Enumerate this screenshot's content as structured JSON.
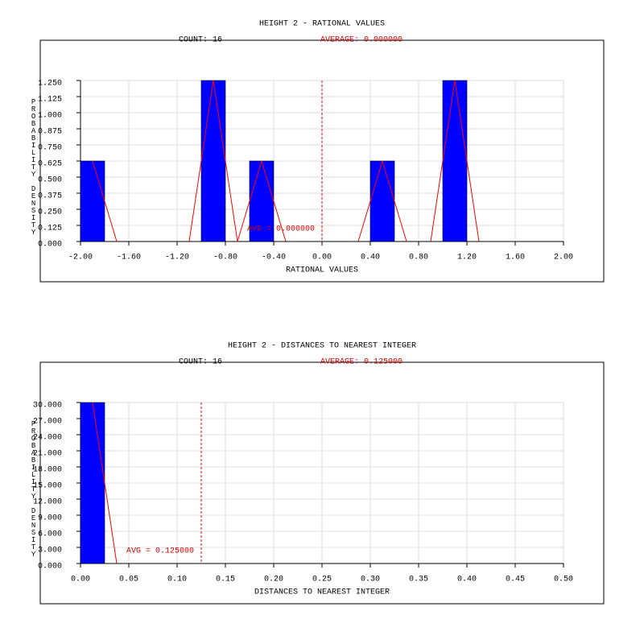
{
  "chart_data": [
    {
      "type": "histogram",
      "title": "HEIGHT 2 - RATIONAL VALUES",
      "count_label": "COUNT: 16",
      "average_label": "AVERAGE: 0.000000",
      "avg_annotation": "AVG = 0.000000",
      "mean": 0,
      "x_label": "RATIONAL VALUES",
      "y_label": "PROBABILITY DENSITY",
      "bins": [
        -2.0,
        -1.8,
        -1.6,
        -1.4,
        -1.2,
        -1.0,
        -0.8,
        -0.6,
        -0.4,
        -0.2,
        0.0,
        0.2,
        0.4,
        0.6,
        0.8,
        1.0,
        1.2
      ],
      "values": [
        0.625,
        0,
        0,
        0,
        0,
        1.25,
        0,
        0.625,
        0,
        0,
        0,
        0,
        0.625,
        0,
        0,
        1.25
      ],
      "color": "#0000ff",
      "polygon_color": "#ff0000",
      "xlim": [
        -2,
        2
      ],
      "ylim": [
        0,
        1.25
      ],
      "xticks": [
        {
          "value": -2,
          "label": "-2.00"
        },
        {
          "value": -1.6,
          "label": "-1.60"
        },
        {
          "value": -1.2,
          "label": "-1.20"
        },
        {
          "value": -0.8,
          "label": "-0.80"
        },
        {
          "value": -0.4,
          "label": "-0.40"
        },
        {
          "value": 0,
          "label": "0.00"
        },
        {
          "value": 0.4,
          "label": "0.40"
        },
        {
          "value": 0.8,
          "label": "0.80"
        },
        {
          "value": 1.2,
          "label": "1.20"
        },
        {
          "value": 1.6,
          "label": "1.60"
        },
        {
          "value": 2,
          "label": "2.00"
        }
      ],
      "yticks": [
        {
          "value": 0,
          "label": "0.000"
        },
        {
          "value": 0.125,
          "label": "0.125"
        },
        {
          "value": 0.25,
          "label": "0.250"
        },
        {
          "value": 0.375,
          "label": "0.375"
        },
        {
          "value": 0.5,
          "label": "0.500"
        },
        {
          "value": 0.625,
          "label": "0.625"
        },
        {
          "value": 0.75,
          "label": "0.750"
        },
        {
          "value": 0.875,
          "label": "0.875"
        },
        {
          "value": 1,
          "label": "1.000"
        },
        {
          "value": 1.125,
          "label": "1.125"
        },
        {
          "value": 1.25,
          "label": "1.250"
        }
      ],
      "grid": true
    },
    {
      "type": "histogram",
      "title": "HEIGHT 2 - DISTANCES TO NEAREST INTEGER",
      "count_label": "COUNT: 16",
      "average_label": "AVERAGE: 0.125000",
      "avg_annotation": "AVG = 0.125000",
      "mean": 0.125,
      "x_label": "DISTANCES TO NEAREST INTEGER",
      "y_label": "PROBABILITY DENSITY",
      "bins": [
        0,
        0.025
      ],
      "values": [
        30
      ],
      "color": "#0000ff",
      "polygon_color": "#ff0000",
      "xlim": [
        0,
        0.5
      ],
      "ylim": [
        0,
        30
      ],
      "xticks": [
        {
          "value": 0,
          "label": "0.00"
        },
        {
          "value": 0.05,
          "label": "0.05"
        },
        {
          "value": 0.1,
          "label": "0.10"
        },
        {
          "value": 0.15,
          "label": "0.15"
        },
        {
          "value": 0.2,
          "label": "0.20"
        },
        {
          "value": 0.25,
          "label": "0.25"
        },
        {
          "value": 0.3,
          "label": "0.30"
        },
        {
          "value": 0.35,
          "label": "0.35"
        },
        {
          "value": 0.4,
          "label": "0.40"
        },
        {
          "value": 0.45,
          "label": "0.45"
        },
        {
          "value": 0.5,
          "label": "0.50"
        }
      ],
      "yticks": [
        {
          "value": 0,
          "label": "0.000"
        },
        {
          "value": 3,
          "label": "3.000"
        },
        {
          "value": 6,
          "label": "6.000"
        },
        {
          "value": 9,
          "label": "9.000"
        },
        {
          "value": 12,
          "label": "12.000"
        },
        {
          "value": 15,
          "label": "15.000"
        },
        {
          "value": 18,
          "label": "18.000"
        },
        {
          "value": 21,
          "label": "21.000"
        },
        {
          "value": 24,
          "label": "24.000"
        },
        {
          "value": 27,
          "label": "27.000"
        },
        {
          "value": 30,
          "label": "30.000"
        }
      ],
      "grid": true
    }
  ]
}
